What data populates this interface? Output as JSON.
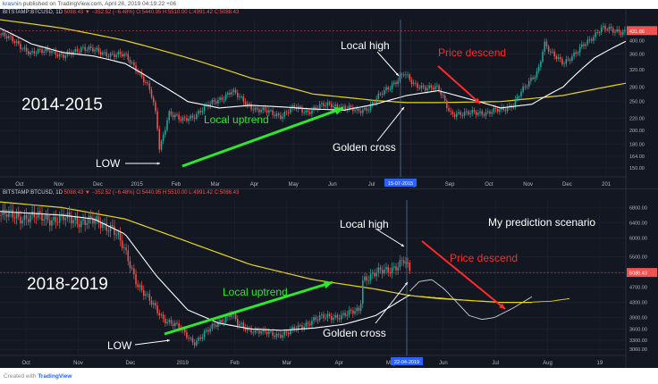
{
  "header": {
    "user": "krasnin",
    "text": "published on TradingView.com, April 26, 2019 04:19:22 +06"
  },
  "footer": {
    "created_with": "Created with",
    "brand": "TradingView"
  },
  "chart_data": [
    {
      "type": "candlestick",
      "symbol": "BITSTAMP:BTCUSD, 1D",
      "ohlc": "5088.43 ▼ −352.52 (−6.48%) O:5440.95 H:5510.00 L:4991.42 C:5088.43",
      "period_label": "2014-2015",
      "x_ticks": [
        "Oct",
        "Nov",
        "Dec",
        "2015",
        "Feb",
        "Mar",
        "Apr",
        "May",
        "Jun",
        "Jul",
        "Aug",
        "Sep",
        "Oct",
        "Nov",
        "Dec",
        "201"
      ],
      "y_ticks": [
        150,
        164,
        180,
        200,
        220,
        250,
        280,
        320,
        360,
        400
      ],
      "y_scale": "log",
      "ylim": [
        140,
        470
      ],
      "price_badge": "431.86",
      "crosshair_label": "15-07-2015",
      "price_path": [
        [
          0,
          420
        ],
        [
          0.03,
          390
        ],
        [
          0.05,
          360
        ],
        [
          0.08,
          375
        ],
        [
          0.1,
          350
        ],
        [
          0.13,
          380
        ],
        [
          0.16,
          365
        ],
        [
          0.2,
          355
        ],
        [
          0.22,
          320
        ],
        [
          0.24,
          270
        ],
        [
          0.25,
          220
        ],
        [
          0.255,
          172
        ],
        [
          0.27,
          230
        ],
        [
          0.29,
          215
        ],
        [
          0.31,
          225
        ],
        [
          0.33,
          240
        ],
        [
          0.35,
          255
        ],
        [
          0.37,
          270
        ],
        [
          0.39,
          250
        ],
        [
          0.41,
          235
        ],
        [
          0.43,
          230
        ],
        [
          0.45,
          225
        ],
        [
          0.47,
          238
        ],
        [
          0.49,
          232
        ],
        [
          0.51,
          240
        ],
        [
          0.53,
          245
        ],
        [
          0.55,
          238
        ],
        [
          0.57,
          232
        ],
        [
          0.59,
          240
        ],
        [
          0.61,
          265
        ],
        [
          0.63,
          290
        ],
        [
          0.645,
          310
        ],
        [
          0.66,
          285
        ],
        [
          0.68,
          280
        ],
        [
          0.7,
          275
        ],
        [
          0.72,
          230
        ],
        [
          0.74,
          225
        ],
        [
          0.76,
          232
        ],
        [
          0.78,
          228
        ],
        [
          0.8,
          235
        ],
        [
          0.82,
          245
        ],
        [
          0.84,
          280
        ],
        [
          0.86,
          320
        ],
        [
          0.87,
          390
        ],
        [
          0.88,
          360
        ],
        [
          0.9,
          340
        ],
        [
          0.92,
          360
        ],
        [
          0.94,
          400
        ],
        [
          0.96,
          440
        ],
        [
          0.98,
          430
        ],
        [
          1.0,
          432
        ]
      ],
      "ma_fast": [
        [
          0,
          440
        ],
        [
          0.05,
          390
        ],
        [
          0.1,
          365
        ],
        [
          0.15,
          355
        ],
        [
          0.2,
          335
        ],
        [
          0.25,
          290
        ],
        [
          0.3,
          250
        ],
        [
          0.35,
          238
        ],
        [
          0.4,
          243
        ],
        [
          0.45,
          240
        ],
        [
          0.5,
          236
        ],
        [
          0.55,
          234
        ],
        [
          0.6,
          245
        ],
        [
          0.65,
          262
        ],
        [
          0.7,
          272
        ],
        [
          0.75,
          255
        ],
        [
          0.8,
          238
        ],
        [
          0.85,
          245
        ],
        [
          0.9,
          280
        ],
        [
          0.95,
          350
        ],
        [
          1.0,
          398
        ]
      ],
      "ma_slow": [
        [
          0,
          470
        ],
        [
          0.1,
          440
        ],
        [
          0.2,
          400
        ],
        [
          0.3,
          350
        ],
        [
          0.4,
          300
        ],
        [
          0.5,
          265
        ],
        [
          0.6,
          252
        ],
        [
          0.65,
          248
        ],
        [
          0.7,
          248
        ],
        [
          0.8,
          250
        ],
        [
          0.9,
          262
        ],
        [
          1.0,
          288
        ]
      ],
      "annotations": {
        "local_high": "Local high",
        "price_descend": "Price descend",
        "local_uptrend": "Local uptrend",
        "golden_cross": "Golden cross",
        "low": "LOW"
      }
    },
    {
      "type": "candlestick",
      "symbol": "BITSTAMP:BTCUSD, 1D",
      "ohlc": "5088.43 ▼ −352.52 (−6.48%) O:5440.95 H:5510.00 L:4991.42 C:5088.43",
      "period_label": "2018-2019",
      "x_ticks": [
        "Oct",
        "Nov",
        "Dec",
        "2019",
        "Feb",
        "Mar",
        "Apr",
        "May",
        "Jun",
        "Jul",
        "Aug",
        "19"
      ],
      "y_ticks": [
        3060,
        3300,
        3600,
        3900,
        4300,
        4700,
        5088,
        5500,
        6000,
        6400,
        6800
      ],
      "ylim": [
        2900,
        7000
      ],
      "price_badge": "5088.43",
      "crosshair_label": "22-04-2019",
      "price_path": [
        [
          0,
          6600
        ],
        [
          0.05,
          6550
        ],
        [
          0.1,
          6500
        ],
        [
          0.14,
          6450
        ],
        [
          0.18,
          6300
        ],
        [
          0.2,
          5600
        ],
        [
          0.22,
          4800
        ],
        [
          0.24,
          4300
        ],
        [
          0.26,
          3900
        ],
        [
          0.28,
          3700
        ],
        [
          0.3,
          3400
        ],
        [
          0.31,
          3250
        ],
        [
          0.33,
          3500
        ],
        [
          0.35,
          3800
        ],
        [
          0.37,
          4000
        ],
        [
          0.38,
          3700
        ],
        [
          0.4,
          3600
        ],
        [
          0.42,
          3500
        ],
        [
          0.44,
          3450
        ],
        [
          0.46,
          3500
        ],
        [
          0.48,
          3650
        ],
        [
          0.5,
          3850
        ],
        [
          0.52,
          3900
        ],
        [
          0.54,
          3950
        ],
        [
          0.56,
          4000
        ],
        [
          0.575,
          4100
        ],
        [
          0.58,
          4950
        ],
        [
          0.6,
          5050
        ],
        [
          0.62,
          5150
        ],
        [
          0.635,
          5300
        ],
        [
          0.645,
          5400
        ],
        [
          0.655,
          5088
        ]
      ],
      "ma_fast": [
        [
          0,
          6700
        ],
        [
          0.1,
          6600
        ],
        [
          0.15,
          6500
        ],
        [
          0.2,
          6100
        ],
        [
          0.25,
          5000
        ],
        [
          0.3,
          4100
        ],
        [
          0.35,
          3750
        ],
        [
          0.4,
          3600
        ],
        [
          0.45,
          3560
        ],
        [
          0.5,
          3620
        ],
        [
          0.55,
          3720
        ],
        [
          0.6,
          3950
        ],
        [
          0.655,
          4500
        ]
      ],
      "ma_slow": [
        [
          0,
          6950
        ],
        [
          0.1,
          6800
        ],
        [
          0.2,
          6500
        ],
        [
          0.3,
          5900
        ],
        [
          0.4,
          5300
        ],
        [
          0.5,
          4900
        ],
        [
          0.6,
          4650
        ],
        [
          0.655,
          4480
        ],
        [
          0.7,
          4400
        ],
        [
          0.8,
          4300
        ],
        [
          0.85,
          4300
        ]
      ],
      "prediction_path": [
        [
          0.655,
          4600
        ],
        [
          0.67,
          4850
        ],
        [
          0.69,
          4900
        ],
        [
          0.71,
          4650
        ],
        [
          0.73,
          4300
        ],
        [
          0.75,
          3950
        ],
        [
          0.77,
          3850
        ],
        [
          0.79,
          3900
        ],
        [
          0.82,
          4150
        ],
        [
          0.85,
          4450
        ]
      ],
      "prediction_ma": [
        [
          0.655,
          4480
        ],
        [
          0.7,
          4420
        ],
        [
          0.75,
          4350
        ],
        [
          0.8,
          4300
        ],
        [
          0.84,
          4300
        ],
        [
          0.88,
          4330
        ],
        [
          0.91,
          4400
        ]
      ],
      "annotations": {
        "local_high": "Local high",
        "price_descend": "Price descend",
        "local_uptrend": "Local uptrend",
        "golden_cross": "Golden cross",
        "low": "LOW",
        "prediction": "My prediction scenario"
      }
    }
  ]
}
